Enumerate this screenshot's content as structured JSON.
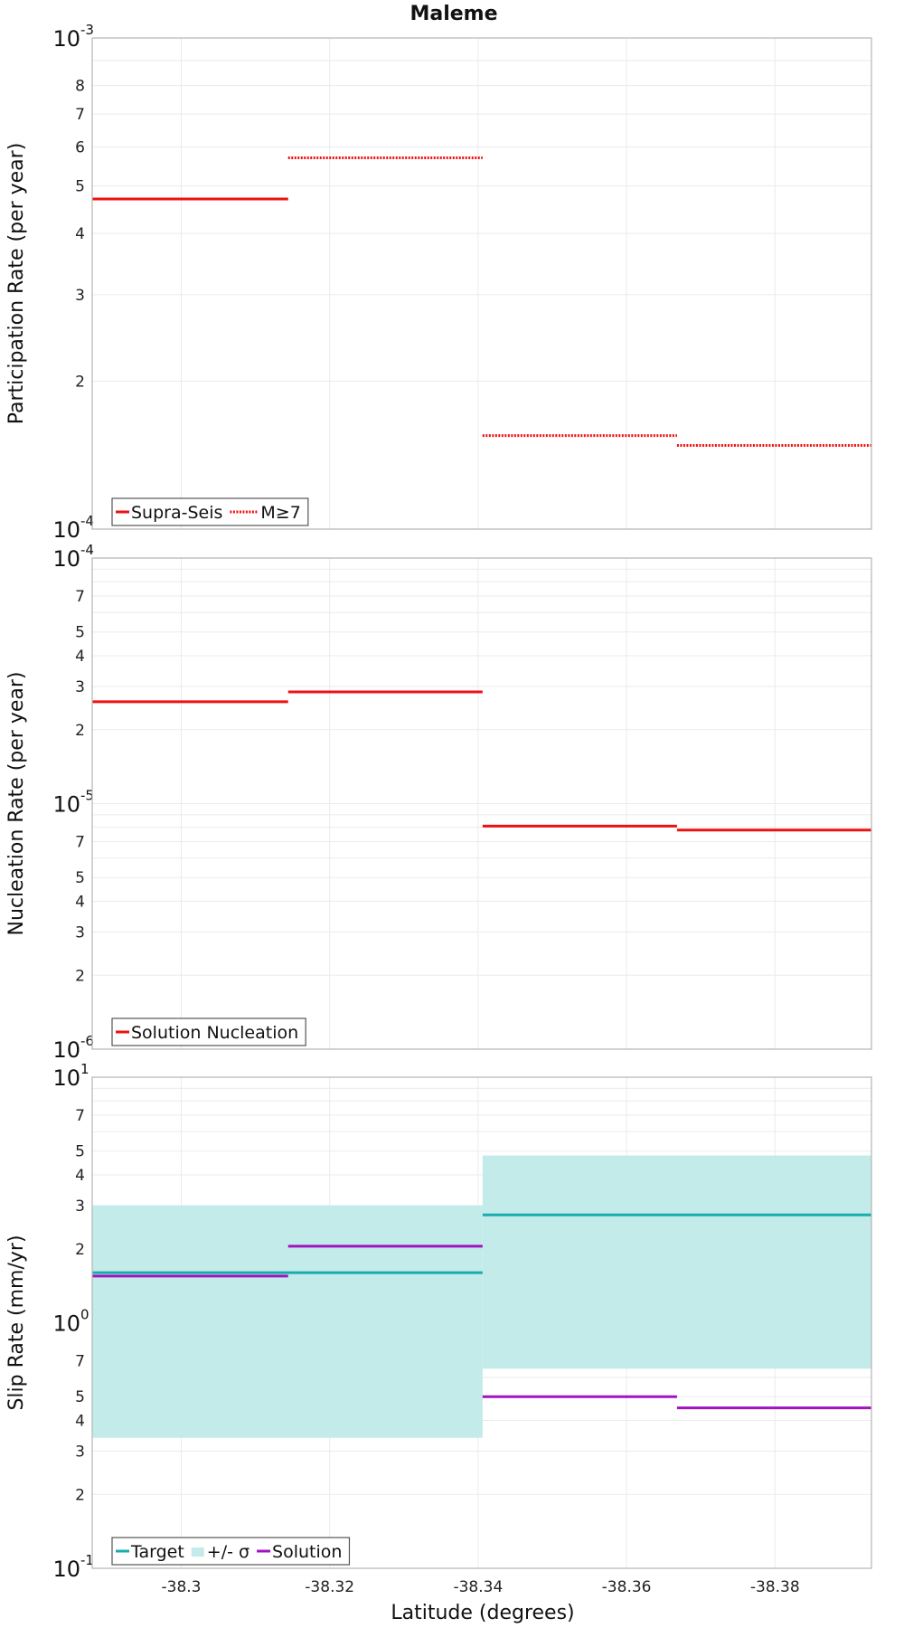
{
  "title": "Maleme",
  "xlabel": "Latitude (degrees)",
  "x_ticks": [
    "-38.3",
    "-38.32",
    "-38.34",
    "-38.36",
    "-38.38"
  ],
  "colors": {
    "red": "#ee1111",
    "teal": "#1aacac",
    "band": "#c2ebea",
    "purple": "#a014c0"
  },
  "chart_data": [
    {
      "type": "line",
      "ylabel": "Participation Rate (per year)",
      "yscale": "log",
      "ylim": [
        0.0001,
        0.001
      ],
      "xlim": [
        -38.288,
        -38.393
      ],
      "legend": "bottom-left",
      "series": [
        {
          "name": "Supra-Seis",
          "style": "solid",
          "segments": [
            {
              "x": [
                -38.288,
                -38.3144
              ],
              "y": 0.00047
            }
          ]
        },
        {
          "name": "M≥7",
          "style": "dotted",
          "segments": [
            {
              "x": [
                -38.3144,
                -38.3406
              ],
              "y": 0.00057
            },
            {
              "x": [
                -38.3406,
                -38.3668
              ],
              "y": 0.000155
            },
            {
              "x": [
                -38.3668,
                -38.393
              ],
              "y": 0.000148
            }
          ]
        }
      ]
    },
    {
      "type": "line",
      "ylabel": "Nucleation Rate (per year)",
      "yscale": "log",
      "ylim": [
        1e-06,
        0.0001
      ],
      "xlim": [
        -38.288,
        -38.393
      ],
      "legend": "bottom-left",
      "series": [
        {
          "name": "Solution Nucleation",
          "style": "solid",
          "segments": [
            {
              "x": [
                -38.288,
                -38.3144
              ],
              "y": 2.6e-05
            },
            {
              "x": [
                -38.3144,
                -38.3406
              ],
              "y": 2.85e-05
            },
            {
              "x": [
                -38.3406,
                -38.3668
              ],
              "y": 8.1e-06
            },
            {
              "x": [
                -38.3668,
                -38.393
              ],
              "y": 7.8e-06
            }
          ]
        }
      ]
    },
    {
      "type": "line",
      "ylabel": "Slip Rate (mm/yr)",
      "yscale": "log",
      "ylim": [
        0.1,
        10
      ],
      "xlim": [
        -38.288,
        -38.393
      ],
      "legend": "bottom-left",
      "series": [
        {
          "name": "Target",
          "style": "solid",
          "segments": [
            {
              "x": [
                -38.288,
                -38.3406
              ],
              "y": 1.6
            },
            {
              "x": [
                -38.3406,
                -38.393
              ],
              "y": 2.75
            }
          ]
        },
        {
          "name": "+/- σ",
          "style": "band",
          "segments": [
            {
              "x": [
                -38.288,
                -38.3406
              ],
              "low": 0.34,
              "high": 3.0
            },
            {
              "x": [
                -38.3406,
                -38.393
              ],
              "low": 0.65,
              "high": 4.8
            }
          ]
        },
        {
          "name": "Solution",
          "style": "solid",
          "segments": [
            {
              "x": [
                -38.288,
                -38.3144
              ],
              "y": 1.55
            },
            {
              "x": [
                -38.3144,
                -38.3406
              ],
              "y": 2.05
            },
            {
              "x": [
                -38.3406,
                -38.3668
              ],
              "y": 0.5
            },
            {
              "x": [
                -38.3668,
                -38.393
              ],
              "y": 0.45
            }
          ]
        }
      ]
    }
  ]
}
